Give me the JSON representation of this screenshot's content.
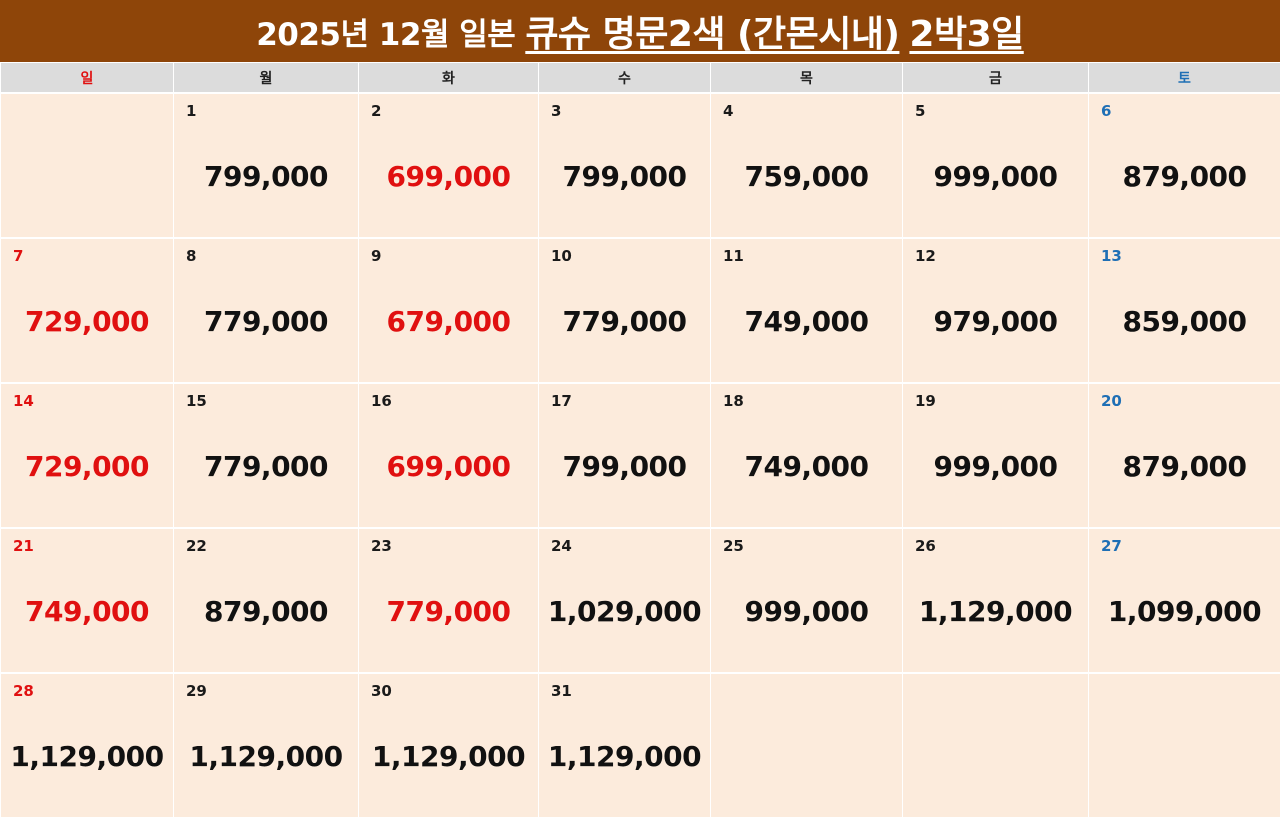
{
  "title": {
    "prefix": "2025년 12월 일본",
    "main": "큐슈 명문2색 (간몬시내)",
    "suffix": "2박3일"
  },
  "colors": {
    "banner": "#8e4509",
    "cell": "#fcebdc",
    "header": "#dcdcdc",
    "sunday": "#e01010",
    "saturday": "#1f6fb5",
    "price_red": "#e01010"
  },
  "weekdays": [
    "일",
    "월",
    "화",
    "수",
    "목",
    "금",
    "토"
  ],
  "weeks": [
    [
      {
        "day": "",
        "price": ""
      },
      {
        "day": "1",
        "price": "799,000"
      },
      {
        "day": "2",
        "price": "699,000",
        "red": true
      },
      {
        "day": "3",
        "price": "799,000"
      },
      {
        "day": "4",
        "price": "759,000"
      },
      {
        "day": "5",
        "price": "999,000"
      },
      {
        "day": "6",
        "price": "879,000"
      }
    ],
    [
      {
        "day": "7",
        "price": "729,000",
        "red": true
      },
      {
        "day": "8",
        "price": "779,000"
      },
      {
        "day": "9",
        "price": "679,000",
        "red": true
      },
      {
        "day": "10",
        "price": "779,000"
      },
      {
        "day": "11",
        "price": "749,000"
      },
      {
        "day": "12",
        "price": "979,000"
      },
      {
        "day": "13",
        "price": "859,000"
      }
    ],
    [
      {
        "day": "14",
        "price": "729,000",
        "red": true
      },
      {
        "day": "15",
        "price": "779,000"
      },
      {
        "day": "16",
        "price": "699,000",
        "red": true
      },
      {
        "day": "17",
        "price": "799,000"
      },
      {
        "day": "18",
        "price": "749,000"
      },
      {
        "day": "19",
        "price": "999,000"
      },
      {
        "day": "20",
        "price": "879,000"
      }
    ],
    [
      {
        "day": "21",
        "price": "749,000",
        "red": true
      },
      {
        "day": "22",
        "price": "879,000"
      },
      {
        "day": "23",
        "price": "779,000",
        "red": true
      },
      {
        "day": "24",
        "price": "1,029,000"
      },
      {
        "day": "25",
        "price": "999,000"
      },
      {
        "day": "26",
        "price": "1,129,000"
      },
      {
        "day": "27",
        "price": "1,099,000"
      }
    ],
    [
      {
        "day": "28",
        "price": "1,129,000"
      },
      {
        "day": "29",
        "price": "1,129,000"
      },
      {
        "day": "30",
        "price": "1,129,000"
      },
      {
        "day": "31",
        "price": "1,129,000"
      },
      {
        "day": "",
        "price": ""
      },
      {
        "day": "",
        "price": ""
      },
      {
        "day": "",
        "price": ""
      }
    ]
  ]
}
